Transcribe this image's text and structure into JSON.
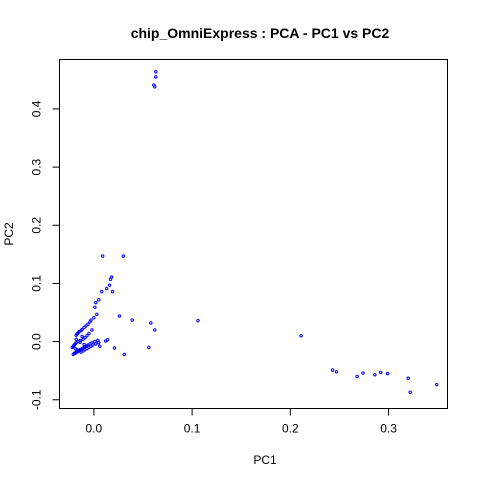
{
  "chart_data": {
    "type": "scatter",
    "title": "chip_OmniExpress : PCA - PC1 vs PC2",
    "xlabel": "PC1",
    "ylabel": "PC2",
    "xlim": [
      -0.035,
      0.36
    ],
    "ylim": [
      -0.115,
      0.485
    ],
    "xticks": [
      0.0,
      0.1,
      0.2,
      0.3
    ],
    "xtick_labels": [
      "0.0",
      "0.1",
      "0.2",
      "0.3"
    ],
    "yticks": [
      -0.1,
      0.0,
      0.1,
      0.2,
      0.3,
      0.4
    ],
    "ytick_labels": [
      "-0.1",
      "0.0",
      "0.1",
      "0.2",
      "0.3",
      "0.4"
    ],
    "grid": false,
    "legend": "none",
    "point_color": "#0000ff",
    "series": [
      {
        "x": [
          0.063,
          0.063,
          0.061,
          0.062,
          0.009,
          0.03,
          0.018,
          0.017,
          0.016,
          0.013,
          0.008,
          0.005,
          0.002,
          0.001,
          0.019,
          0.003,
          0.0,
          -0.003,
          -0.004,
          -0.006,
          -0.008,
          -0.01,
          -0.012,
          -0.013,
          -0.015,
          -0.016,
          -0.017,
          -0.018,
          -0.002,
          -0.005,
          -0.007,
          -0.009,
          -0.011,
          -0.014,
          -0.016,
          -0.018,
          -0.019,
          -0.02,
          -0.021,
          -0.022,
          -0.019,
          -0.017,
          -0.015,
          -0.013,
          -0.011,
          -0.009,
          -0.007,
          -0.005,
          -0.003,
          -0.001,
          0.002,
          0.005,
          -0.02,
          -0.018,
          -0.016,
          -0.014,
          -0.012,
          -0.01,
          -0.008,
          -0.006,
          -0.004,
          -0.002,
          0.001,
          0.004,
          -0.021,
          -0.019,
          -0.017,
          -0.015,
          -0.013,
          -0.011,
          -0.009,
          -0.007,
          -0.01,
          -0.014,
          -0.018,
          -0.012,
          0.026,
          0.039,
          0.058,
          0.062,
          0.014,
          0.012,
          0.021,
          0.031,
          0.006,
          0.056,
          0.106,
          0.211,
          0.243,
          0.247,
          0.268,
          0.274,
          0.286,
          0.292,
          0.299,
          0.32,
          0.322,
          0.349
        ],
        "y": [
          0.464,
          0.455,
          0.441,
          0.438,
          0.147,
          0.147,
          0.111,
          0.107,
          0.097,
          0.091,
          0.086,
          0.072,
          0.067,
          0.059,
          0.086,
          0.047,
          0.041,
          0.037,
          0.034,
          0.03,
          0.027,
          0.024,
          0.021,
          0.019,
          0.017,
          0.015,
          0.013,
          0.011,
          0.02,
          0.014,
          0.01,
          0.007,
          0.004,
          0.002,
          0.0,
          -0.002,
          -0.004,
          -0.006,
          -0.008,
          -0.01,
          -0.012,
          -0.014,
          -0.016,
          -0.018,
          -0.016,
          -0.014,
          -0.012,
          -0.01,
          -0.008,
          -0.006,
          -0.004,
          -0.002,
          -0.02,
          -0.018,
          -0.016,
          -0.014,
          -0.012,
          -0.01,
          -0.008,
          -0.006,
          -0.004,
          -0.002,
          0.0,
          0.002,
          -0.022,
          -0.02,
          -0.018,
          -0.016,
          -0.014,
          -0.012,
          -0.01,
          -0.008,
          -0.005,
          -0.001,
          0.004,
          0.009,
          0.044,
          0.037,
          0.032,
          0.02,
          0.003,
          0.001,
          -0.011,
          -0.022,
          -0.008,
          -0.01,
          0.036,
          0.01,
          -0.049,
          -0.052,
          -0.06,
          -0.054,
          -0.057,
          -0.053,
          -0.055,
          -0.063,
          -0.087,
          -0.074
        ]
      }
    ]
  }
}
